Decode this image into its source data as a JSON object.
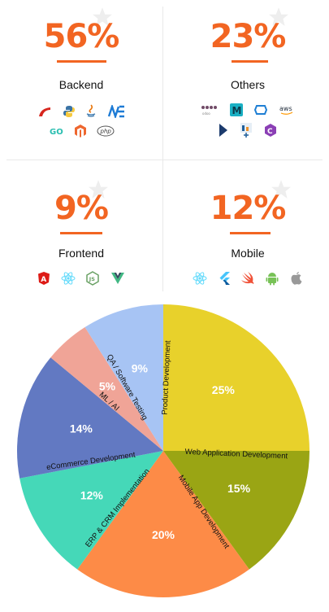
{
  "stats": [
    {
      "percent": "56%",
      "label": "Backend",
      "icons": [
        "scala-icon",
        "python-icon",
        "java-icon",
        "dotnet-icon",
        "go-icon",
        "magento-icon",
        "php-icon"
      ],
      "icon_texts": {
        "go": "GO",
        "php": "php"
      }
    },
    {
      "percent": "23%",
      "label": "Others",
      "icons": [
        "odoo-icon",
        "magento-m-icon",
        "azure-icon",
        "aws-icon",
        "dynamics-icon",
        "tableau-icon",
        "csharp-icon"
      ],
      "icon_texts": {
        "odoo": "odoo",
        "aws": "aws"
      }
    },
    {
      "percent": "9%",
      "label": "Frontend",
      "icons": [
        "angular-icon",
        "react-icon",
        "nodejs-icon",
        "vue-icon"
      ],
      "icon_texts": {
        "js": "JS"
      }
    },
    {
      "percent": "12%",
      "label": "Mobile",
      "icons": [
        "react-native-icon",
        "flutter-icon",
        "swift-icon",
        "android-icon",
        "apple-icon"
      ]
    }
  ],
  "colors": {
    "accent": "#f26522"
  },
  "chart_data": {
    "type": "pie",
    "start": "12 o'clock, clockwise",
    "slices": [
      {
        "label": "Product Development",
        "value": 25,
        "value_label": "25%",
        "color": "#e8d12b"
      },
      {
        "label": "Web Application Development",
        "value": 15,
        "value_label": "15%",
        "color": "#9aa514"
      },
      {
        "label": "Mobile App Development",
        "value": 20,
        "value_label": "20%",
        "color": "#fd8b47"
      },
      {
        "label": "ERP & CRM Implementation",
        "value": 12,
        "value_label": "12%",
        "color": "#45d8b8"
      },
      {
        "label": "eCommerce Development",
        "value": 14,
        "value_label": "14%",
        "color": "#6279c2"
      },
      {
        "label": "ML / AI",
        "value": 5,
        "value_label": "5%",
        "color": "#f0a497"
      },
      {
        "label": "QA / Software Testing",
        "value": 9,
        "value_label": "9%",
        "color": "#a7c4f4"
      }
    ]
  }
}
